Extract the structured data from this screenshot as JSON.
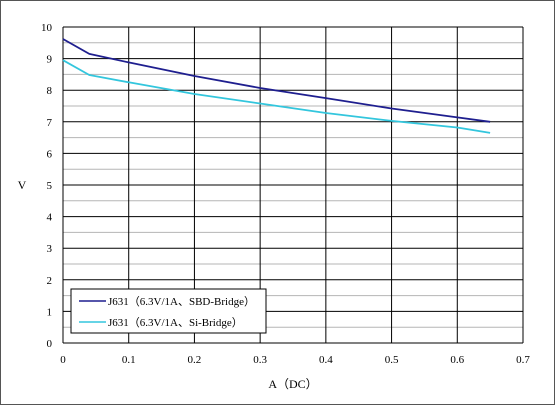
{
  "chart_data": {
    "type": "line",
    "xlabel": "A（DC）",
    "ylabel": "V",
    "xlim": [
      0,
      0.7
    ],
    "ylim": [
      0,
      10
    ],
    "x_ticks": [
      "0",
      "0.1",
      "0.2",
      "0.3",
      "0.4",
      "0.5",
      "0.6",
      "0.7"
    ],
    "y_ticks": [
      "0",
      "1",
      "2",
      "3",
      "4",
      "5",
      "6",
      "7",
      "8",
      "9",
      "10"
    ],
    "grid": {
      "major": true,
      "minor_y": true
    },
    "legend_position": "bottom-left",
    "series": [
      {
        "name": "J631（6.3V/1A、SBD-Bridge）",
        "color": "#1f1f8f",
        "x": [
          0,
          0.04,
          0.1,
          0.2,
          0.3,
          0.4,
          0.5,
          0.6,
          0.65
        ],
        "y": [
          9.62,
          9.15,
          8.88,
          8.45,
          8.07,
          7.75,
          7.42,
          7.14,
          7.0
        ]
      },
      {
        "name": "J631（6.3V/1A、Si-Bridge）",
        "color": "#33c6dd",
        "x": [
          0,
          0.04,
          0.1,
          0.2,
          0.3,
          0.4,
          0.5,
          0.6,
          0.65
        ],
        "y": [
          8.95,
          8.48,
          8.25,
          7.88,
          7.58,
          7.28,
          7.03,
          6.82,
          6.65
        ]
      }
    ]
  }
}
